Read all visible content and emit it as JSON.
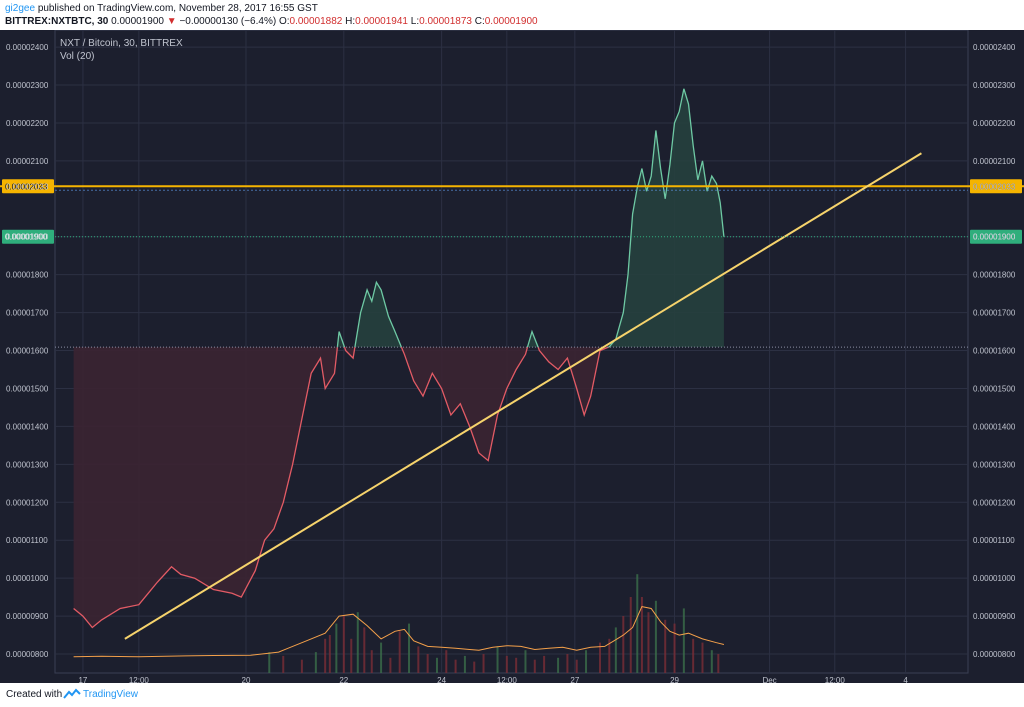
{
  "header": {
    "author": "gi2gee",
    "published_text": "published on TradingView.com, November 28, 2017 16:55 GST",
    "symbol": "BITTREX:NXTBTC, 30",
    "last": "0.00001900",
    "change_arrow": "▼",
    "change": "−0.00000130 (−6.4%)",
    "o_label": "O:",
    "o_value": "0.00001882",
    "h_label": "H:",
    "h_value": "0.00001941",
    "l_label": "L:",
    "l_value": "0.00001873",
    "c_label": "C:",
    "c_value": "0.00001900"
  },
  "legend": {
    "title": "NXT / Bitcoin, 30, BITTREX",
    "indicator": "Vol (20)"
  },
  "footer": {
    "created_with": "Created with",
    "brand": "TradingView"
  },
  "colors": {
    "background": "#1c1f2e",
    "grid": "#2c3043",
    "up": "#6ec9a4",
    "down": "#e35b65",
    "fill_up": "#26403e",
    "fill_down": "#3b2432",
    "trend": "#f6d36c",
    "price_tag": "#2fae7c",
    "hline_tag": "#f5b400",
    "volume_ma": "#f4a04a",
    "axis_text": "#c0c4cf"
  },
  "chart_data": {
    "type": "line",
    "title": "NXT / Bitcoin, 30, BITTREX",
    "ylim": [
      7.5e-06,
      2.445e-05
    ],
    "y_ticks": [
      "0.00000800",
      "0.00000900",
      "0.00001000",
      "0.00001100",
      "0.00001200",
      "0.00001300",
      "0.00001400",
      "0.00001500",
      "0.00001600",
      "0.00001700",
      "0.00001800",
      "0.00001900",
      "0.00002033",
      "0.00002100",
      "0.00002200",
      "0.00002300",
      "0.00002400"
    ],
    "x_ticks": [
      "17",
      "12:00",
      "20",
      "22",
      "24",
      "12:00",
      "27",
      "29",
      "Dec",
      "12:00",
      "4"
    ],
    "x_tick_days": [
      16.9,
      17.5,
      18.65,
      19.7,
      20.75,
      21.45,
      22.18,
      23.25,
      24.27,
      24.97,
      25.73
    ],
    "baseline": 1.609e-05,
    "last_price": 1.9e-05,
    "last_price_label": "0.00001900",
    "hline": 2.033e-05,
    "hline_label": "0.00002033",
    "series": [
      {
        "points": [
          [
            16.8,
            9.2
          ],
          [
            16.9,
            9.0
          ],
          [
            17.0,
            8.7
          ],
          [
            17.1,
            8.9
          ],
          [
            17.3,
            9.2
          ],
          [
            17.5,
            9.3
          ],
          [
            17.6,
            9.6
          ],
          [
            17.7,
            9.9
          ],
          [
            17.85,
            10.3
          ],
          [
            17.95,
            10.1
          ],
          [
            18.1,
            10.0
          ],
          [
            18.3,
            9.7
          ],
          [
            18.5,
            9.6
          ],
          [
            18.6,
            9.5
          ],
          [
            18.75,
            10.2
          ],
          [
            18.85,
            11.0
          ],
          [
            18.95,
            11.3
          ],
          [
            19.05,
            12.0
          ],
          [
            19.15,
            13.0
          ],
          [
            19.25,
            14.2
          ],
          [
            19.35,
            15.4
          ],
          [
            19.45,
            15.8
          ],
          [
            19.5,
            15.0
          ],
          [
            19.6,
            15.4
          ],
          [
            19.65,
            16.5
          ],
          [
            19.72,
            16.0
          ],
          [
            19.8,
            15.8
          ],
          [
            19.88,
            17.0
          ],
          [
            19.95,
            17.6
          ],
          [
            20.0,
            17.3
          ],
          [
            20.05,
            17.8
          ],
          [
            20.1,
            17.6
          ],
          [
            20.18,
            16.9
          ],
          [
            20.25,
            16.5
          ],
          [
            20.35,
            15.9
          ],
          [
            20.45,
            15.2
          ],
          [
            20.55,
            14.8
          ],
          [
            20.65,
            15.4
          ],
          [
            20.75,
            15.0
          ],
          [
            20.85,
            14.3
          ],
          [
            20.95,
            14.6
          ],
          [
            21.05,
            14.0
          ],
          [
            21.15,
            13.3
          ],
          [
            21.25,
            13.1
          ],
          [
            21.35,
            14.3
          ],
          [
            21.45,
            15.0
          ],
          [
            21.55,
            15.5
          ],
          [
            21.65,
            15.9
          ],
          [
            21.72,
            16.5
          ],
          [
            21.8,
            16.0
          ],
          [
            21.9,
            15.7
          ],
          [
            22.0,
            15.5
          ],
          [
            22.1,
            15.8
          ],
          [
            22.2,
            15.0
          ],
          [
            22.28,
            14.3
          ],
          [
            22.35,
            14.8
          ],
          [
            22.45,
            16.0
          ],
          [
            22.55,
            16.1
          ],
          [
            22.62,
            16.3
          ],
          [
            22.7,
            17.0
          ],
          [
            22.75,
            18.0
          ],
          [
            22.8,
            19.6
          ],
          [
            22.85,
            20.3
          ],
          [
            22.9,
            20.8
          ],
          [
            22.95,
            20.2
          ],
          [
            23.0,
            20.6
          ],
          [
            23.05,
            21.8
          ],
          [
            23.1,
            20.8
          ],
          [
            23.15,
            20.0
          ],
          [
            23.2,
            20.9
          ],
          [
            23.25,
            22.0
          ],
          [
            23.3,
            22.3
          ],
          [
            23.35,
            22.9
          ],
          [
            23.4,
            22.5
          ],
          [
            23.45,
            21.4
          ],
          [
            23.5,
            20.5
          ],
          [
            23.55,
            21.0
          ],
          [
            23.6,
            20.2
          ],
          [
            23.65,
            20.6
          ],
          [
            23.7,
            20.4
          ],
          [
            23.74,
            19.9
          ],
          [
            23.78,
            19.0
          ]
        ]
      }
    ],
    "volume": {
      "name": "Vol (20)",
      "ma": [
        [
          16.8,
          7.93
        ],
        [
          17.1,
          7.94
        ],
        [
          17.5,
          7.93
        ],
        [
          18.0,
          7.95
        ],
        [
          18.3,
          7.96
        ],
        [
          18.7,
          7.97
        ],
        [
          19.0,
          8.05
        ],
        [
          19.1,
          8.15
        ],
        [
          19.3,
          8.35
        ],
        [
          19.5,
          8.55
        ],
        [
          19.65,
          9.0
        ],
        [
          19.8,
          9.05
        ],
        [
          19.95,
          8.75
        ],
        [
          20.1,
          8.4
        ],
        [
          20.25,
          8.6
        ],
        [
          20.35,
          8.65
        ],
        [
          20.45,
          8.35
        ],
        [
          20.6,
          8.2
        ],
        [
          20.75,
          8.18
        ],
        [
          20.9,
          8.15
        ],
        [
          21.05,
          8.12
        ],
        [
          21.15,
          8.1
        ],
        [
          21.3,
          8.18
        ],
        [
          21.45,
          8.22
        ],
        [
          21.6,
          8.2
        ],
        [
          21.75,
          8.12
        ],
        [
          21.9,
          8.15
        ],
        [
          22.05,
          8.18
        ],
        [
          22.2,
          8.1
        ],
        [
          22.35,
          8.18
        ],
        [
          22.5,
          8.2
        ],
        [
          22.6,
          8.35
        ],
        [
          22.7,
          8.5
        ],
        [
          22.8,
          8.7
        ],
        [
          22.9,
          9.25
        ],
        [
          23.0,
          9.2
        ],
        [
          23.1,
          8.85
        ],
        [
          23.2,
          8.6
        ],
        [
          23.3,
          8.5
        ],
        [
          23.4,
          8.55
        ],
        [
          23.55,
          8.4
        ],
        [
          23.7,
          8.3
        ],
        [
          23.78,
          8.25
        ]
      ],
      "bars": [
        [
          18.9,
          0.55
        ],
        [
          19.05,
          0.45
        ],
        [
          19.25,
          0.35
        ],
        [
          19.4,
          0.55
        ],
        [
          19.5,
          0.9
        ],
        [
          19.55,
          1.0
        ],
        [
          19.62,
          1.3
        ],
        [
          19.7,
          1.5
        ],
        [
          19.78,
          0.9
        ],
        [
          19.85,
          1.6
        ],
        [
          19.92,
          1.2
        ],
        [
          20.0,
          0.6
        ],
        [
          20.1,
          0.8
        ],
        [
          20.2,
          0.4
        ],
        [
          20.3,
          1.1
        ],
        [
          20.4,
          1.3
        ],
        [
          20.5,
          0.7
        ],
        [
          20.6,
          0.5
        ],
        [
          20.7,
          0.4
        ],
        [
          20.8,
          0.6
        ],
        [
          20.9,
          0.35
        ],
        [
          21.0,
          0.45
        ],
        [
          21.1,
          0.3
        ],
        [
          21.2,
          0.5
        ],
        [
          21.35,
          0.7
        ],
        [
          21.45,
          0.45
        ],
        [
          21.55,
          0.4
        ],
        [
          21.65,
          0.6
        ],
        [
          21.75,
          0.35
        ],
        [
          21.85,
          0.45
        ],
        [
          22.0,
          0.4
        ],
        [
          22.1,
          0.5
        ],
        [
          22.2,
          0.35
        ],
        [
          22.3,
          0.6
        ],
        [
          22.45,
          0.8
        ],
        [
          22.55,
          0.9
        ],
        [
          22.62,
          1.2
        ],
        [
          22.7,
          1.5
        ],
        [
          22.78,
          2.0
        ],
        [
          22.85,
          2.6
        ],
        [
          22.9,
          2.0
        ],
        [
          22.97,
          1.6
        ],
        [
          23.05,
          1.9
        ],
        [
          23.15,
          1.4
        ],
        [
          23.25,
          1.3
        ],
        [
          23.35,
          1.7
        ],
        [
          23.45,
          0.9
        ],
        [
          23.55,
          0.8
        ],
        [
          23.65,
          0.6
        ],
        [
          23.72,
          0.5
        ]
      ]
    },
    "trendline": [
      [
        17.35,
        8.4
      ],
      [
        25.9,
        21.2
      ]
    ]
  }
}
